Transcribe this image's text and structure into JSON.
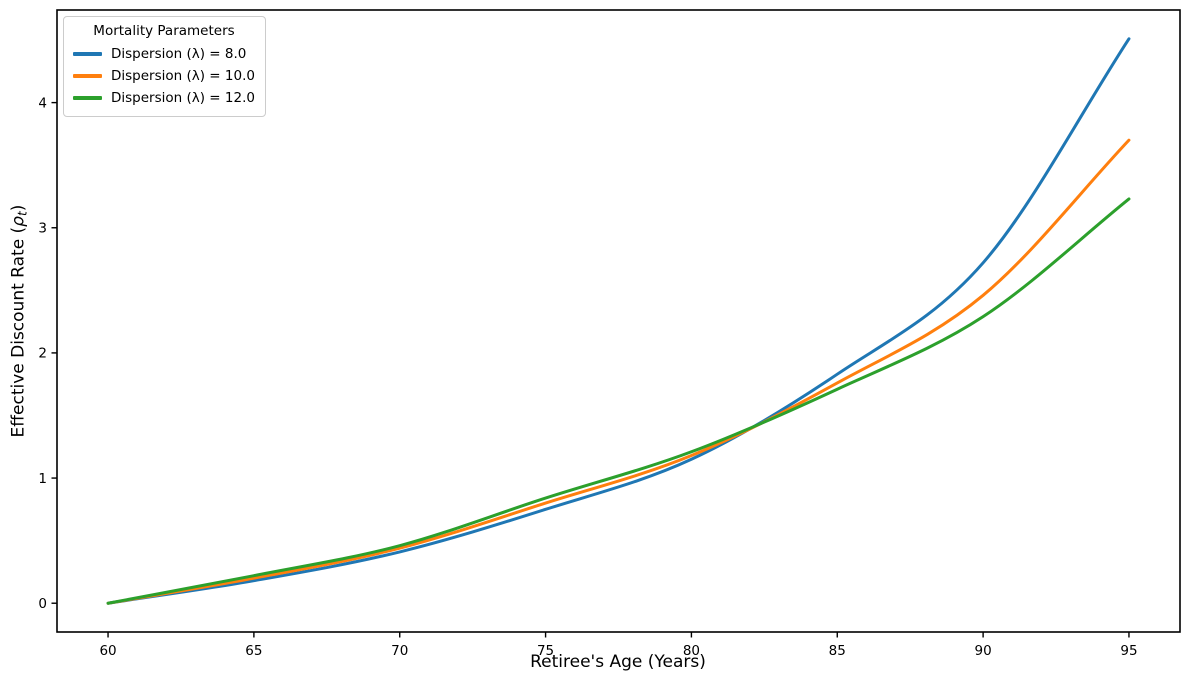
{
  "figure": {
    "background": "#ffffff"
  },
  "axes": {
    "ylabel_prefix": "Effective Discount Rate (",
    "ylabel_symbol": "ρ",
    "ylabel_subscript": "t",
    "ylabel_suffix": ")",
    "spine_color": "#000000",
    "tick_color": "#000000"
  },
  "chart_data": {
    "type": "line",
    "title": "",
    "xlabel": "Retiree's Age (Years)",
    "ylabel": "Effective Discount Rate (ρt)",
    "legend_title": "Mortality Parameters",
    "legend_position": "upper left",
    "grid": false,
    "x": [
      60,
      65,
      70,
      75,
      80,
      85,
      90,
      95
    ],
    "series": [
      {
        "name": "Dispersion (λ) = 8.0",
        "color": "#1f77b4",
        "values": [
          0.0,
          0.18,
          0.41,
          0.75,
          1.15,
          1.83,
          2.72,
          4.51
        ]
      },
      {
        "name": "Dispersion (λ) = 10.0",
        "color": "#ff7f0e",
        "values": [
          0.0,
          0.2,
          0.44,
          0.8,
          1.18,
          1.76,
          2.46,
          3.7
        ]
      },
      {
        "name": "Dispersion (λ) = 12.0",
        "color": "#2ca02c",
        "values": [
          0.0,
          0.22,
          0.46,
          0.84,
          1.21,
          1.71,
          2.29,
          3.23
        ]
      }
    ],
    "xlim": [
      58.25,
      96.75
    ],
    "ylim": [
      -0.23,
      4.74
    ],
    "xticks": [
      "60",
      "65",
      "70",
      "75",
      "80",
      "85",
      "90",
      "95"
    ],
    "yticks": [
      "0",
      "1",
      "2",
      "3",
      "4"
    ],
    "line_width": 3,
    "tick_font_size": 13.5,
    "label_font_size": 17
  }
}
